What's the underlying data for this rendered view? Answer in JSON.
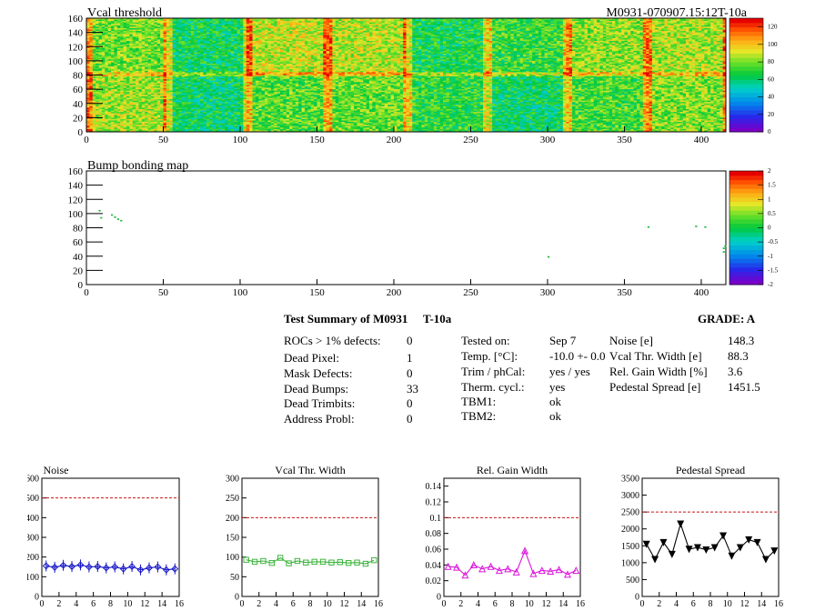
{
  "header": {
    "title": "Vcal threshold",
    "module_label": "M0931-070907.15:12T-10a"
  },
  "heatmap": {
    "title": "Vcal threshold",
    "x_ticks": [
      "0",
      "50",
      "100",
      "150",
      "200",
      "250",
      "300",
      "350",
      "400"
    ],
    "y_ticks": [
      "0",
      "20",
      "40",
      "60",
      "80",
      "100",
      "120",
      "140",
      "160"
    ],
    "palette_labels": [
      "0",
      "20",
      "40",
      "60",
      "80",
      "100",
      "120"
    ]
  },
  "bump": {
    "title": "Bump bonding map",
    "x_ticks": [
      "0",
      "50",
      "100",
      "150",
      "200",
      "250",
      "300",
      "350",
      "400"
    ],
    "y_ticks": [
      "0",
      "20",
      "40",
      "60",
      "80",
      "100",
      "120",
      "140",
      "160"
    ],
    "palette_labels": [
      "-2",
      "-1.5",
      "-1",
      "-0.5",
      "0",
      "0.5",
      "1",
      "1.5",
      "2"
    ]
  },
  "summary": {
    "title": "Test Summary of M0931",
    "tag": "T-10a",
    "grade_label": "GRADE:  A",
    "left_rows": [
      {
        "label": "ROCs > 1% defects:",
        "value": "0"
      },
      {
        "label": "Dead Pixel:",
        "value": "1"
      },
      {
        "label": "Mask Defects:",
        "value": "0"
      },
      {
        "label": "Dead Bumps:",
        "value": "33"
      },
      {
        "label": "Dead Trimbits:",
        "value": "0"
      },
      {
        "label": "Address Probl:",
        "value": "0"
      }
    ],
    "mid_rows": [
      {
        "label": "Tested on:",
        "value": "Sep 7"
      },
      {
        "label": "Temp. [°C]:",
        "value": "-10.0 +- 0.0"
      },
      {
        "label": "Trim / phCal:",
        "value": "yes / yes"
      },
      {
        "label": "Therm. cycl.:",
        "value": "yes"
      },
      {
        "label": "TBM1:",
        "value": "ok"
      },
      {
        "label": "TBM2:",
        "value": "ok"
      }
    ],
    "right_rows": [
      {
        "label": "Noise [e]",
        "value": "148.3"
      },
      {
        "label": "Vcal Thr. Width [e]",
        "value": "88.3"
      },
      {
        "label": "Rel. Gain Width [%]",
        "value": "3.6"
      },
      {
        "label": "Pedestal Spread [e]",
        "value": "1451.5"
      }
    ]
  },
  "chart_data": [
    {
      "type": "heatmap",
      "title": "Vcal threshold",
      "xlim": [
        0,
        416
      ],
      "ylim": [
        0,
        160
      ],
      "zlim": [
        0,
        130
      ],
      "roc_grid": {
        "columns": 8,
        "rows": 2
      },
      "roc_mean_values": [
        [
          80,
          64,
          90,
          88,
          66,
          72,
          84,
          86
        ],
        [
          86,
          62,
          76,
          78,
          70,
          62,
          74,
          82
        ]
      ]
    },
    {
      "type": "scatter",
      "title": "Bump bonding map",
      "xlim": [
        0,
        416
      ],
      "ylim": [
        0,
        160
      ],
      "zlim": [
        -2,
        2
      ],
      "points": [
        {
          "x": 8,
          "y": 105
        },
        {
          "x": 9,
          "y": 95
        },
        {
          "x": 16,
          "y": 99
        },
        {
          "x": 18,
          "y": 96
        },
        {
          "x": 20,
          "y": 93
        },
        {
          "x": 22,
          "y": 91
        },
        {
          "x": 300,
          "y": 40
        },
        {
          "x": 365,
          "y": 82
        },
        {
          "x": 396,
          "y": 83
        },
        {
          "x": 402,
          "y": 82
        },
        {
          "x": 414,
          "y": 47
        },
        {
          "x": 414,
          "y": 52
        },
        {
          "x": 415,
          "y": 55
        }
      ]
    },
    {
      "type": "line",
      "title": "Noise",
      "x": [
        0,
        1,
        2,
        3,
        4,
        5,
        6,
        7,
        8,
        9,
        10,
        11,
        12,
        13,
        14,
        15
      ],
      "values": [
        155,
        148,
        158,
        152,
        160,
        150,
        152,
        145,
        150,
        140,
        152,
        135,
        145,
        150,
        135,
        140
      ],
      "xlim": [
        0,
        16
      ],
      "ylim": [
        0,
        600
      ],
      "x_ticks": [
        "0",
        "2",
        "4",
        "6",
        "8",
        "10",
        "12",
        "14",
        "16"
      ],
      "y_ticks": [
        "0",
        "100",
        "200",
        "300",
        "400",
        "500",
        "600"
      ],
      "threshold": 500,
      "color": "#1414c8",
      "marker": "diamond"
    },
    {
      "type": "line",
      "title": "Vcal Thr. Width",
      "x": [
        0,
        1,
        2,
        3,
        4,
        5,
        6,
        7,
        8,
        9,
        10,
        11,
        12,
        13,
        14,
        15
      ],
      "values": [
        93,
        88,
        90,
        85,
        98,
        84,
        90,
        86,
        88,
        88,
        86,
        87,
        85,
        86,
        83,
        92
      ],
      "xlim": [
        0,
        16
      ],
      "ylim": [
        0,
        300
      ],
      "x_ticks": [
        "0",
        "2",
        "4",
        "6",
        "8",
        "10",
        "12",
        "14",
        "16"
      ],
      "y_ticks": [
        "0",
        "50",
        "100",
        "150",
        "200",
        "250",
        "300"
      ],
      "threshold": 200,
      "color": "#3cb43c",
      "marker": "square"
    },
    {
      "type": "line",
      "title": "Rel. Gain Width",
      "x": [
        0,
        1,
        2,
        3,
        4,
        5,
        6,
        7,
        8,
        9,
        10,
        11,
        12,
        13,
        14,
        15
      ],
      "values": [
        0.038,
        0.037,
        0.027,
        0.04,
        0.035,
        0.038,
        0.033,
        0.035,
        0.031,
        0.058,
        0.029,
        0.033,
        0.032,
        0.034,
        0.028,
        0.033
      ],
      "xlim": [
        0,
        16
      ],
      "ylim": [
        0,
        0.15
      ],
      "x_ticks": [
        "0",
        "2",
        "4",
        "6",
        "8",
        "10",
        "12",
        "14",
        "16"
      ],
      "y_ticks": [
        "0",
        "0.02",
        "0.04",
        "0.06",
        "0.08",
        "0.1",
        "0.12",
        "0.14"
      ],
      "threshold": 0.1,
      "color": "#dc14dc",
      "marker": "triangle"
    },
    {
      "type": "line",
      "title": "Pedestal Spread",
      "x": [
        0,
        1,
        2,
        3,
        4,
        5,
        6,
        7,
        8,
        9,
        10,
        11,
        12,
        13,
        14,
        15
      ],
      "values": [
        1550,
        1100,
        1600,
        1250,
        2150,
        1400,
        1450,
        1380,
        1450,
        1800,
        1200,
        1450,
        1680,
        1600,
        1100,
        1350
      ],
      "xlim": [
        0,
        16
      ],
      "ylim": [
        0,
        3500
      ],
      "x_ticks": [
        "0",
        "2",
        "4",
        "6",
        "8",
        "10",
        "12",
        "14",
        "16"
      ],
      "y_ticks": [
        "0",
        "500",
        "1000",
        "1500",
        "2000",
        "2500",
        "3000",
        "3500"
      ],
      "threshold": 2500,
      "color": "#000000",
      "marker": "triangle-down"
    }
  ]
}
